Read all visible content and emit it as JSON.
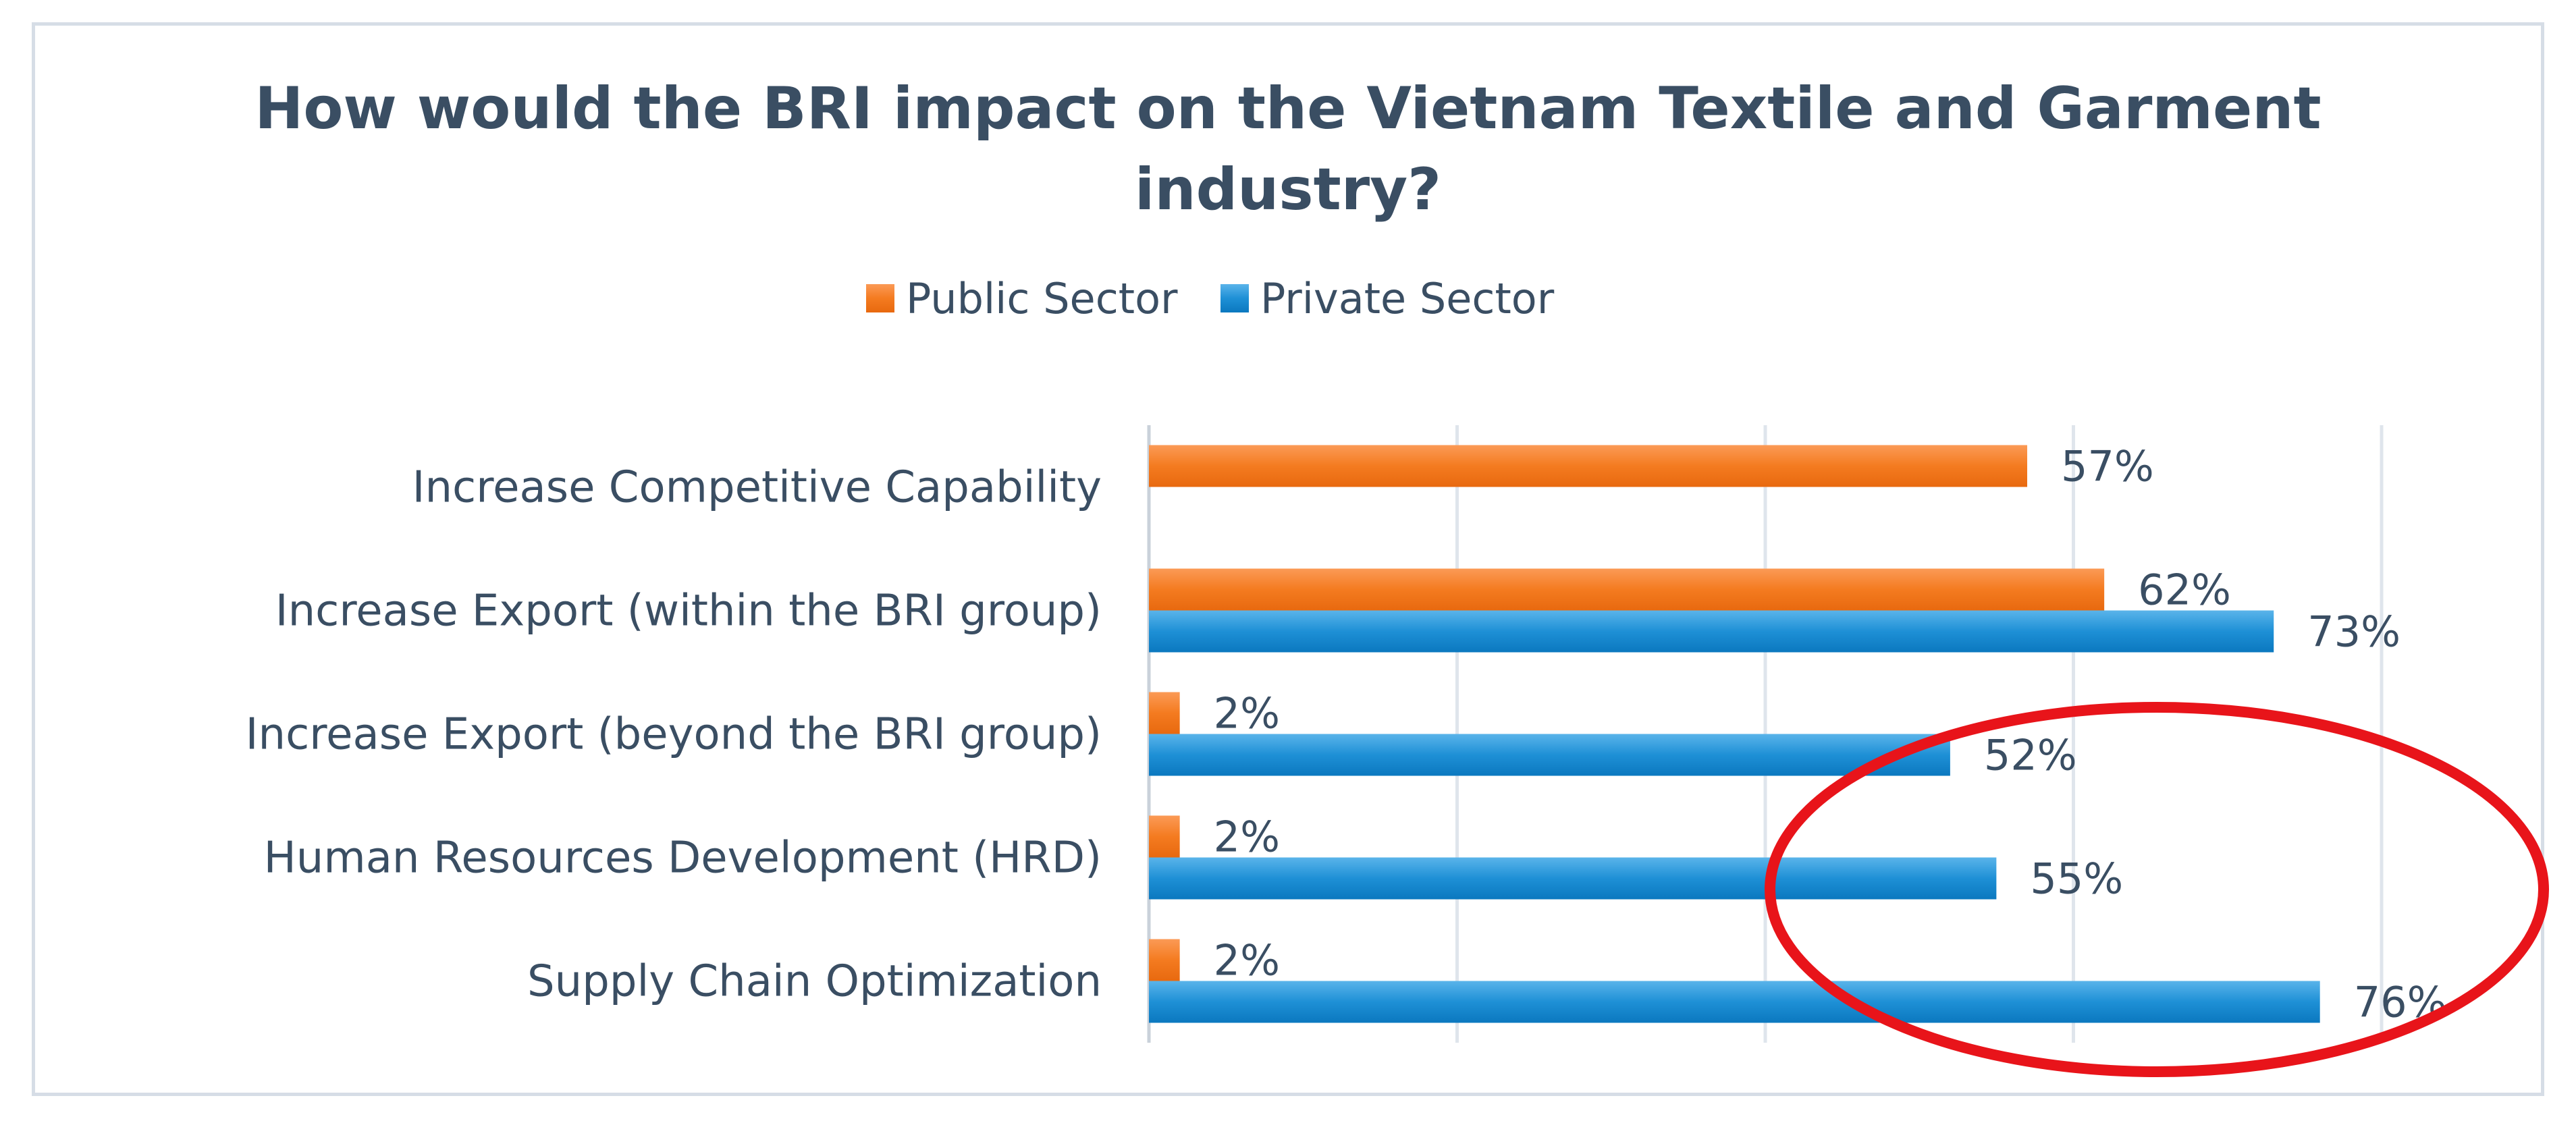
{
  "chart_data": {
    "type": "bar",
    "orientation": "horizontal",
    "title": "How would the BRI impact on the Vietnam Textile and Garment industry?",
    "title_lines": [
      "How would the BRI impact on the Vietnam Textile and Garment",
      "industry?"
    ],
    "xlabel": "",
    "ylabel": "",
    "xlim": [
      0,
      80
    ],
    "grid": true,
    "legend_position": "top",
    "categories": [
      "Increase Competitive Capability",
      "Increase Export (within the BRI group)",
      "Increase Export (beyond the BRI group)",
      "Human Resources Development (HRD)",
      "Supply Chain Optimization"
    ],
    "series": [
      {
        "name": "Public Sector",
        "color": "#f47b20",
        "values": [
          57,
          62,
          2,
          2,
          2
        ],
        "labels": [
          "57%",
          "62%",
          "2%",
          "2%",
          "2%"
        ]
      },
      {
        "name": "Private Sector",
        "color": "#1e90d6",
        "values": [
          null,
          73,
          52,
          55,
          76
        ],
        "labels": [
          "",
          "73%",
          "52%",
          "55%",
          "76%"
        ]
      }
    ],
    "annotation": {
      "shape": "ellipse",
      "color": "#e8141a",
      "highlights": [
        "Increase Export (beyond the BRI group)",
        "Human Resources Development (HRD)",
        "Supply Chain Optimization"
      ]
    }
  }
}
